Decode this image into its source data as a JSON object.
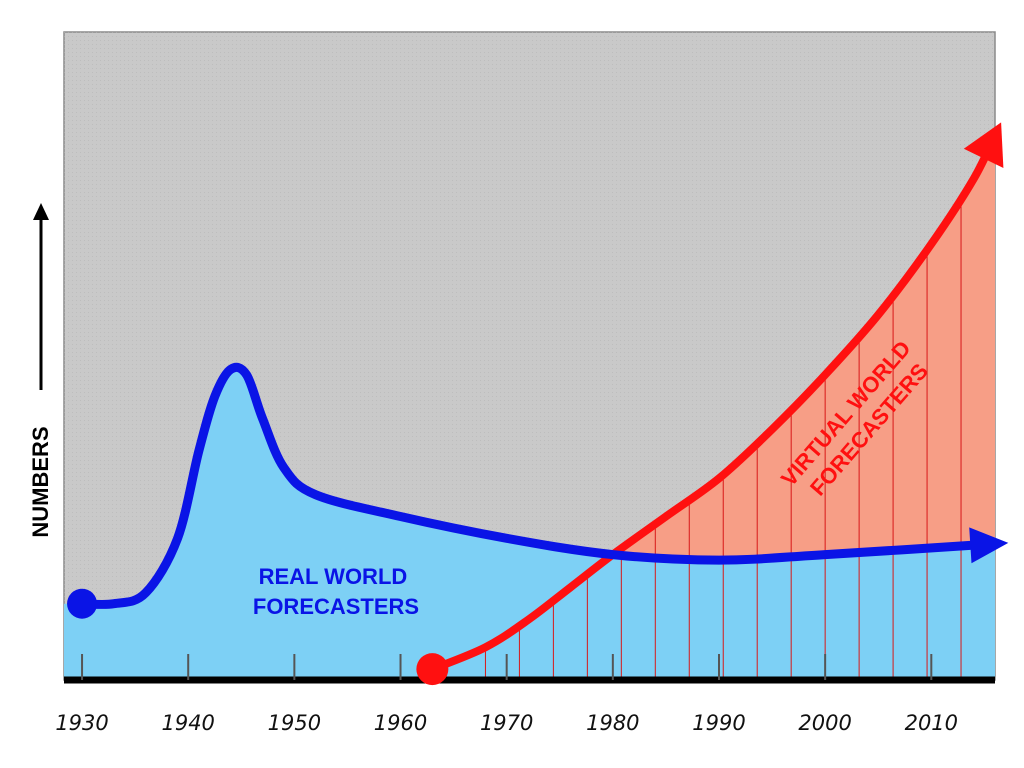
{
  "chart_data": {
    "type": "line",
    "title": "",
    "xlabel": "",
    "ylabel": "NUMBERS",
    "x_ticks": [
      1930,
      1940,
      1950,
      1960,
      1970,
      1980,
      1990,
      2000,
      2010
    ],
    "xlim": [
      1928.3,
      2016
    ],
    "ylim": [
      0,
      100
    ],
    "grid": false,
    "legend": "none",
    "colors": {
      "plot_background": "#c9c9c9",
      "real_line": "#0a14e6",
      "real_fill": "#7dd0f5",
      "virtual_line": "#ff1010",
      "virtual_fill": "#f79e86",
      "baseline": "#000000"
    },
    "series": [
      {
        "name": "REAL WORLD FORECASTERS",
        "label_lines": [
          "REAL WORLD",
          "FORECASTERS"
        ],
        "start_marker": "circle",
        "end_marker": "arrow",
        "points": [
          [
            1930,
            14
          ],
          [
            1933,
            14
          ],
          [
            1936,
            16
          ],
          [
            1939,
            26
          ],
          [
            1941,
            42
          ],
          [
            1942.5,
            52
          ],
          [
            1944,
            57
          ],
          [
            1945.5,
            56
          ],
          [
            1947,
            48
          ],
          [
            1949,
            39
          ],
          [
            1952,
            34
          ],
          [
            1960,
            30
          ],
          [
            1970,
            26
          ],
          [
            1980,
            23
          ],
          [
            1990,
            22
          ],
          [
            2000,
            23
          ],
          [
            2016,
            25
          ]
        ]
      },
      {
        "name": "VIRTUAL WORLD FORECASTERS",
        "label_lines": [
          "VIRTUAL WORLD",
          "FORECASTERS"
        ],
        "start_marker": "circle",
        "end_marker": "arrow",
        "points": [
          [
            1963,
            2
          ],
          [
            1968,
            6
          ],
          [
            1972,
            11
          ],
          [
            1976,
            17
          ],
          [
            1980,
            23
          ],
          [
            1985,
            30
          ],
          [
            1990,
            37
          ],
          [
            1995,
            46
          ],
          [
            2000,
            56
          ],
          [
            2005,
            67
          ],
          [
            2010,
            80
          ],
          [
            2014,
            92
          ],
          [
            2016,
            100
          ]
        ]
      }
    ]
  }
}
